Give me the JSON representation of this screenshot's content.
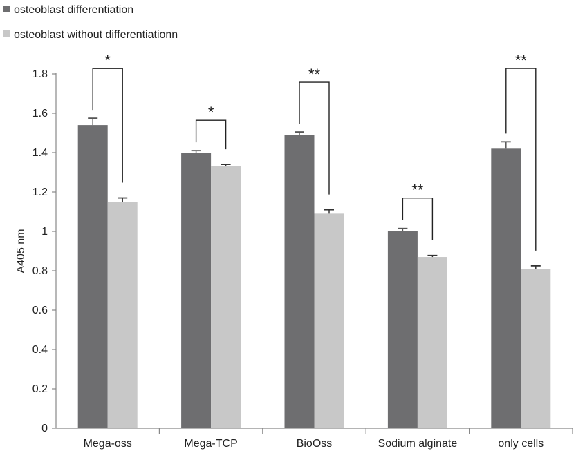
{
  "chart_data": {
    "type": "bar",
    "title": "",
    "xlabel": "",
    "ylabel": "A405 nm",
    "ylim": [
      0,
      1.8
    ],
    "yticks": [
      "0",
      "0.2",
      "0.4",
      "0.6",
      "0.8",
      "1",
      "1.2",
      "1.4",
      "1.6",
      "1.8"
    ],
    "grid": false,
    "legend_position": "top-left",
    "categories": [
      "Mega-oss",
      "Mega-TCP",
      "BioOss",
      "Sodium alginate",
      "only cells"
    ],
    "series": [
      {
        "name": "osteoblast differentiation",
        "color": "#6e6e70",
        "values": [
          1.54,
          1.4,
          1.49,
          1.0,
          1.42
        ],
        "errors": [
          0.035,
          0.01,
          0.015,
          0.015,
          0.035
        ]
      },
      {
        "name": "osteoblast without differentiationn",
        "color": "#c8c8c8",
        "values": [
          1.15,
          1.33,
          1.09,
          0.87,
          0.81
        ],
        "errors": [
          0.02,
          0.01,
          0.02,
          0.008,
          0.015
        ]
      }
    ],
    "significance": [
      "*",
      "*",
      "**",
      "**",
      "**"
    ]
  }
}
